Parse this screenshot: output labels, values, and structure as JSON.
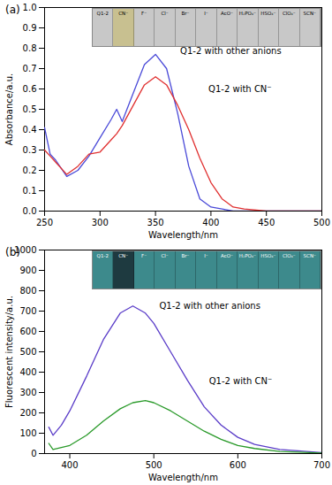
{
  "chart_data": [
    {
      "type": "line",
      "panel_label": "(a)",
      "x_label": "Wavelength/nm",
      "y_label": "Absorbance/a.u.",
      "xlim": [
        250,
        500
      ],
      "xticks": [
        250,
        300,
        350,
        400,
        450,
        500
      ],
      "ylim": [
        0,
        1
      ],
      "yticks": [
        {
          "value": 0,
          "label": "0.0"
        },
        {
          "value": 0.1,
          "label": "0.1"
        },
        {
          "value": 0.2,
          "label": "0.2"
        },
        {
          "value": 0.3,
          "label": "0.3"
        },
        {
          "value": 0.4,
          "label": "0.4"
        },
        {
          "value": 0.5,
          "label": "0.5"
        },
        {
          "value": 0.6,
          "label": "0.6"
        },
        {
          "value": 0.7,
          "label": "0.7"
        },
        {
          "value": 0.8,
          "label": "0.8"
        },
        {
          "value": 0.9,
          "label": "0.9"
        },
        {
          "value": 1,
          "label": "1.0"
        }
      ],
      "grid": false,
      "x": [
        250,
        255,
        260,
        270,
        280,
        290,
        300,
        310,
        315,
        320,
        330,
        340,
        350,
        360,
        370,
        380,
        390,
        400,
        410,
        420,
        430,
        450,
        500
      ],
      "series": [
        {
          "name": "Q1-2 with other anions",
          "color": "#4a4ad8",
          "values": [
            0.41,
            0.28,
            0.25,
            0.17,
            0.2,
            0.27,
            0.36,
            0.45,
            0.5,
            0.44,
            0.58,
            0.72,
            0.77,
            0.7,
            0.48,
            0.22,
            0.06,
            0.02,
            0.01,
            0,
            0,
            0,
            0
          ]
        },
        {
          "name": "Q1-2 with CN⁻",
          "color": "#e03030",
          "values": [
            0.3,
            0.27,
            0.24,
            0.18,
            0.22,
            0.28,
            0.29,
            0.35,
            0.38,
            0.42,
            0.52,
            0.62,
            0.66,
            0.62,
            0.52,
            0.4,
            0.26,
            0.14,
            0.06,
            0.02,
            0.01,
            0,
            0
          ]
        }
      ],
      "inset": {
        "labels": [
          "Q1-2",
          "CN⁻",
          "F⁻",
          "Cl⁻",
          "Br⁻",
          "I⁻",
          "AcO⁻",
          "H₂PO₄⁻",
          "HSO₄⁻",
          "ClO₄⁻",
          "SCN⁻"
        ],
        "colors": [
          "#c8c8c8",
          "#c8c090",
          "#c8c8c8",
          "#c8c8c8",
          "#c8c8c8",
          "#c8c8c8",
          "#c8c8c8",
          "#c8c8c8",
          "#c8c8c8",
          "#c8c8c8",
          "#c8c8c8"
        ]
      }
    },
    {
      "type": "line",
      "panel_label": "(b)",
      "x_label": "Wavelength/nm",
      "y_label": "Fluorescent intensity/a.u.",
      "xlim": [
        370,
        700
      ],
      "xticks": [
        400,
        500,
        600,
        700
      ],
      "ylim": [
        0,
        1000
      ],
      "yticks": [
        0,
        100,
        200,
        300,
        400,
        500,
        600,
        700,
        800,
        900,
        1000
      ],
      "grid": false,
      "x": [
        375,
        380,
        390,
        400,
        420,
        440,
        460,
        475,
        490,
        500,
        520,
        540,
        560,
        580,
        600,
        620,
        650,
        700
      ],
      "series": [
        {
          "name": "Q1-2 with other anions",
          "color": "#5a3cc8",
          "values": [
            130,
            90,
            140,
            210,
            380,
            560,
            690,
            725,
            690,
            640,
            500,
            360,
            230,
            140,
            80,
            45,
            20,
            5
          ]
        },
        {
          "name": "Q1-2 with CN⁻",
          "color": "#2a9a2a",
          "values": [
            50,
            20,
            30,
            40,
            90,
            160,
            220,
            250,
            260,
            250,
            210,
            160,
            110,
            70,
            40,
            25,
            10,
            3
          ]
        }
      ],
      "inset": {
        "labels": [
          "Q1-2",
          "CN⁻",
          "F⁻",
          "Cl⁻",
          "Br⁻",
          "I⁻",
          "AcO⁻",
          "H₂PO₄⁻",
          "HSO₄⁻",
          "ClO₄⁻",
          "SCN⁻"
        ],
        "colors": [
          "#3d8a8c",
          "#1e3a40",
          "#3d8a8c",
          "#3d8a8c",
          "#3d8a8c",
          "#3d8a8c",
          "#3d8a8c",
          "#3d8a8c",
          "#3d8a8c",
          "#3d8a8c",
          "#3d8a8c"
        ]
      }
    }
  ]
}
